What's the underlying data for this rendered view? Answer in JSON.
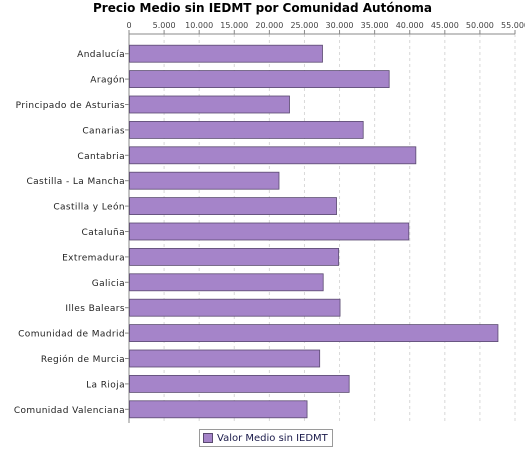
{
  "chart_data": {
    "type": "bar",
    "orientation": "horizontal",
    "title": "Precio Medio sin IEDMT por Comunidad Autónoma",
    "xlabel": "",
    "ylabel": "",
    "xlim": [
      0,
      55000
    ],
    "ticks": [
      0,
      5000,
      10000,
      15000,
      20000,
      25000,
      30000,
      35000,
      40000,
      45000,
      50000,
      55000
    ],
    "tick_labels": [
      "0",
      "5.000",
      "10.000",
      "15.000",
      "20.000",
      "25.000",
      "30.000",
      "35.000",
      "40.000",
      "45.000",
      "50.000",
      "55.000"
    ],
    "grid": true,
    "legend_position": "bottom",
    "categories": [
      "Andalucía",
      "Aragón",
      "Principado de Asturias",
      "Canarias",
      "Cantabria",
      "Castilla - La Mancha",
      "Castilla y León",
      "Cataluña",
      "Extremadura",
      "Galicia",
      "Illes Balears",
      "Comunidad de Madrid",
      "Región de Murcia",
      "La Rioja",
      "Comunidad Valenciana"
    ],
    "series": [
      {
        "name": "Valor Medio sin IEDMT",
        "color": "#a584c9",
        "values": [
          27500,
          37000,
          22800,
          33300,
          40800,
          21300,
          29500,
          39800,
          29800,
          27600,
          30000,
          52500,
          27100,
          31300,
          25300
        ]
      }
    ]
  }
}
